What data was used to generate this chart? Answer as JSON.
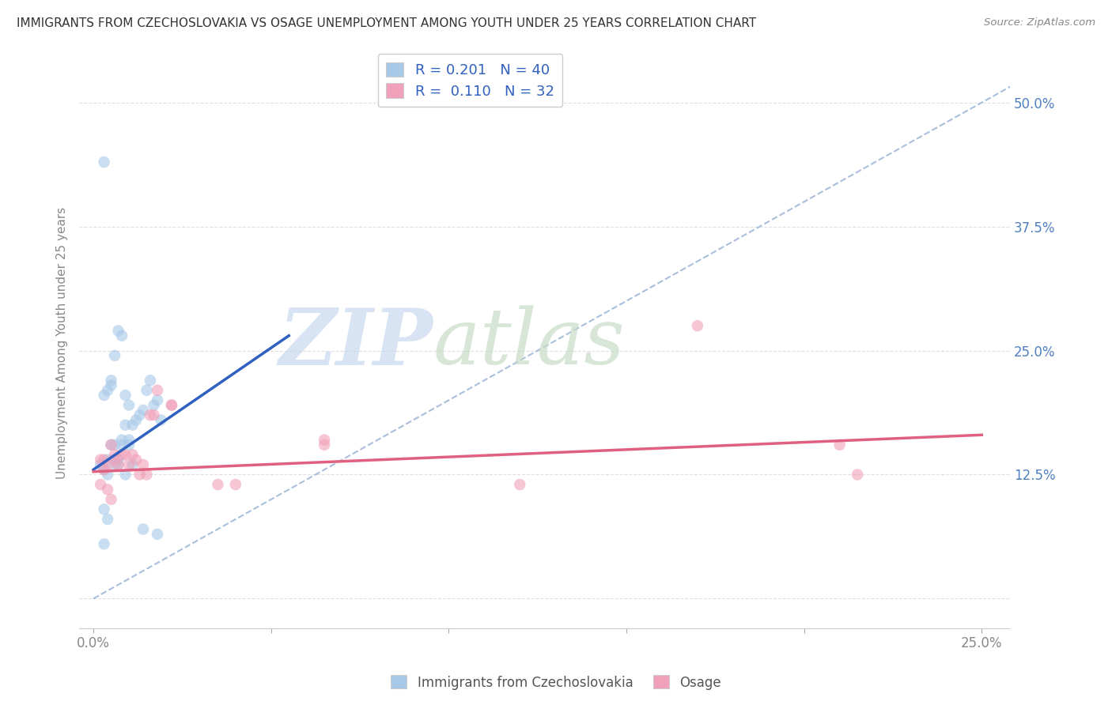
{
  "title": "IMMIGRANTS FROM CZECHOSLOVAKIA VS OSAGE UNEMPLOYMENT AMONG YOUTH UNDER 25 YEARS CORRELATION CHART",
  "source": "Source: ZipAtlas.com",
  "ylabel": "Unemployment Among Youth under 25 years",
  "x_ticks": [
    0.0,
    0.05,
    0.1,
    0.15,
    0.2,
    0.25
  ],
  "x_tick_labels": [
    "0.0%",
    "",
    "",
    "",
    "",
    "25.0%"
  ],
  "y_ticks": [
    0.0,
    0.125,
    0.25,
    0.375,
    0.5
  ],
  "y_tick_labels": [
    "",
    "12.5%",
    "25.0%",
    "37.5%",
    "50.0%"
  ],
  "xlim": [
    -0.004,
    0.258
  ],
  "ylim": [
    -0.03,
    0.545
  ],
  "blue_scatter_x": [
    0.003,
    0.003,
    0.004,
    0.005,
    0.005,
    0.006,
    0.006,
    0.007,
    0.007,
    0.008,
    0.008,
    0.009,
    0.009,
    0.01,
    0.01,
    0.011,
    0.012,
    0.013,
    0.014,
    0.015,
    0.016,
    0.017,
    0.018,
    0.019,
    0.002,
    0.003,
    0.004,
    0.004,
    0.005,
    0.006,
    0.007,
    0.008,
    0.009,
    0.01,
    0.011,
    0.003,
    0.004,
    0.014,
    0.018,
    0.003
  ],
  "blue_scatter_y": [
    0.44,
    0.205,
    0.21,
    0.215,
    0.22,
    0.245,
    0.155,
    0.14,
    0.27,
    0.265,
    0.155,
    0.175,
    0.205,
    0.195,
    0.155,
    0.175,
    0.18,
    0.185,
    0.19,
    0.21,
    0.22,
    0.195,
    0.2,
    0.18,
    0.135,
    0.13,
    0.125,
    0.14,
    0.155,
    0.135,
    0.135,
    0.16,
    0.125,
    0.16,
    0.135,
    0.09,
    0.08,
    0.07,
    0.065,
    0.055
  ],
  "pink_scatter_x": [
    0.002,
    0.003,
    0.004,
    0.005,
    0.006,
    0.006,
    0.007,
    0.008,
    0.009,
    0.01,
    0.011,
    0.012,
    0.013,
    0.014,
    0.015,
    0.016,
    0.017,
    0.018,
    0.002,
    0.003,
    0.004,
    0.005,
    0.022,
    0.022,
    0.035,
    0.04,
    0.065,
    0.065,
    0.17,
    0.21,
    0.215,
    0.12
  ],
  "pink_scatter_y": [
    0.14,
    0.14,
    0.135,
    0.155,
    0.145,
    0.14,
    0.135,
    0.145,
    0.145,
    0.135,
    0.145,
    0.14,
    0.125,
    0.135,
    0.125,
    0.185,
    0.185,
    0.21,
    0.115,
    0.13,
    0.11,
    0.1,
    0.195,
    0.195,
    0.115,
    0.115,
    0.16,
    0.155,
    0.275,
    0.155,
    0.125,
    0.115
  ],
  "blue_line_x": [
    0.0,
    0.055
  ],
  "blue_line_y": [
    0.13,
    0.265
  ],
  "pink_line_x": [
    0.0,
    0.25
  ],
  "pink_line_y": [
    0.128,
    0.165
  ],
  "dash_line_x": [
    0.0,
    0.258
  ],
  "dash_line_y": [
    0.0,
    0.516
  ],
  "blue_color": "#a8c8e8",
  "pink_color": "#f0a0b8",
  "blue_line_color": "#3060c0",
  "pink_line_color": "#e06080",
  "dash_line_color": "#a0b8d8",
  "background_color": "#ffffff",
  "grid_color": "#d8d8d8"
}
